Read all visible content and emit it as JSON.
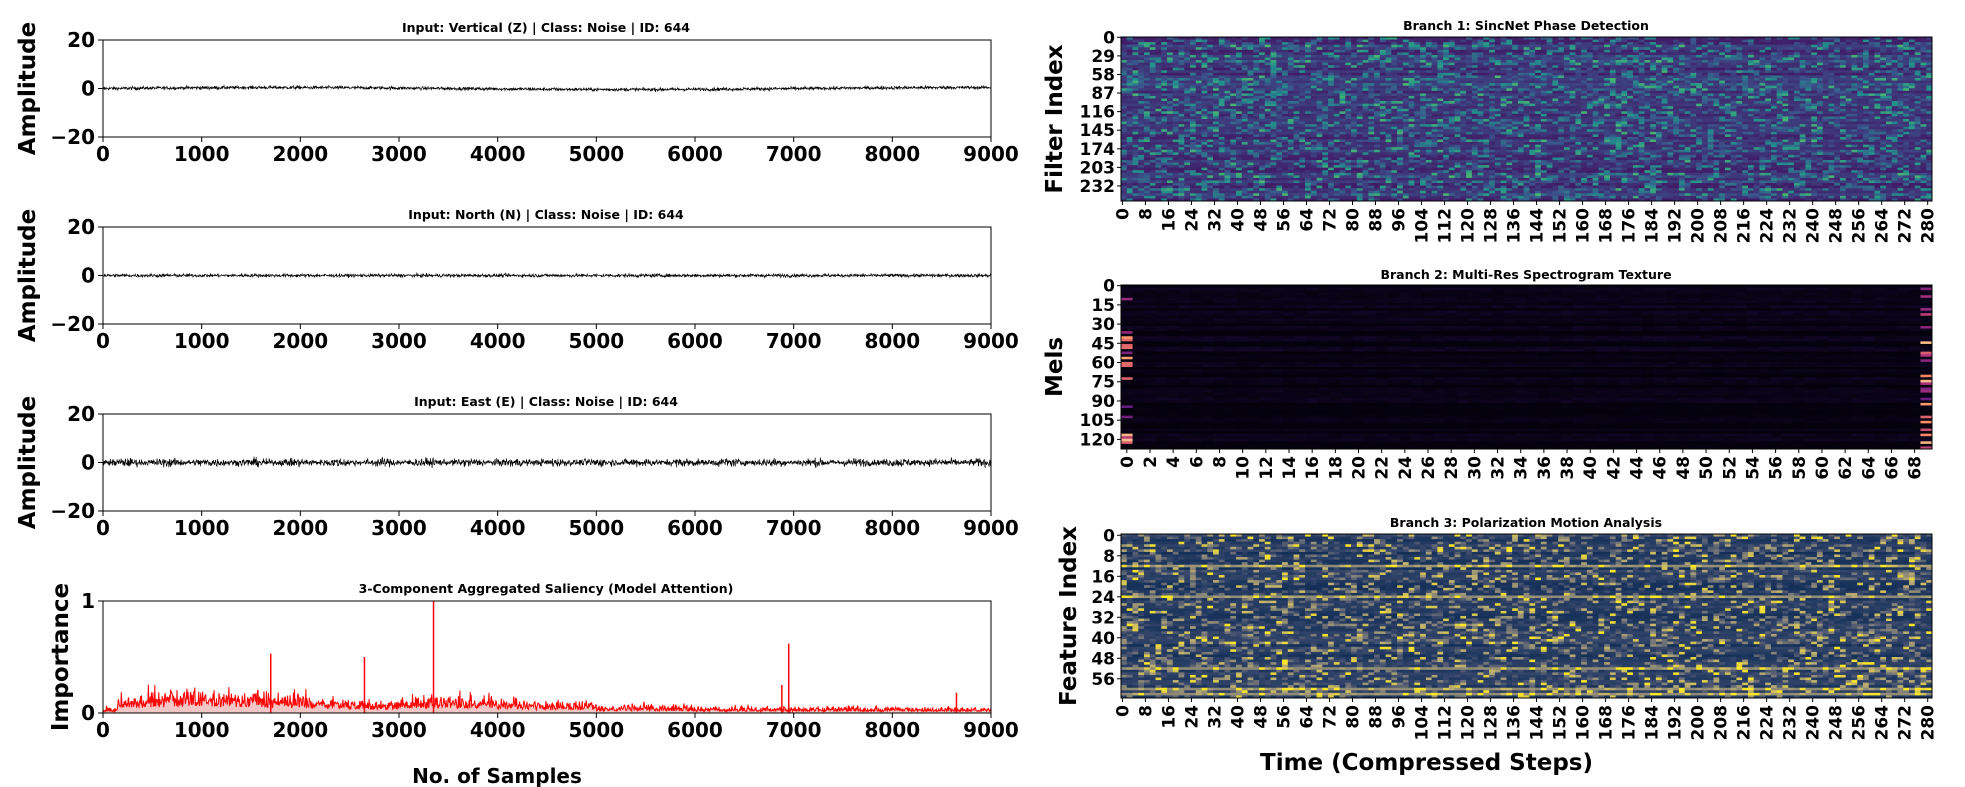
{
  "chart_data": [
    {
      "type": "line",
      "title": "Input: Vertical (Z) | Class: Noise | ID: 644",
      "xlabel": "",
      "ylabel": "Amplitude",
      "xlim": [
        0,
        9000
      ],
      "ylim": [
        -20,
        20
      ],
      "xticks": [
        0,
        1000,
        2000,
        3000,
        4000,
        5000,
        6000,
        7000,
        8000,
        9000
      ],
      "yticks": [
        20,
        0,
        -20
      ],
      "ytick_labels": [
        "20",
        "0",
        "−20"
      ],
      "series": [
        {
          "values_note": "",
          "amplitude_range": [
            -1.5,
            1.5
          ],
          "color": "#000000"
        }
      ]
    },
    {
      "type": "line",
      "title": "Input: North (N) | Class: Noise | ID: 644",
      "xlabel": "",
      "ylabel": "Amplitude",
      "xlim": [
        0,
        9000
      ],
      "ylim": [
        -20,
        20
      ],
      "xticks": [
        0,
        1000,
        2000,
        3000,
        4000,
        5000,
        6000,
        7000,
        8000,
        9000
      ],
      "yticks": [
        20,
        0,
        -20
      ],
      "ytick_labels": [
        "20",
        "0",
        "−20"
      ],
      "series": [
        {
          "values_note": "",
          "amplitude_range": [
            -1.5,
            1.5
          ],
          "color": "#000000"
        }
      ]
    },
    {
      "type": "line",
      "title": "Input: East (E) | Class: Noise | ID: 644",
      "xlabel": "",
      "ylabel": "Amplitude",
      "xlim": [
        0,
        9000
      ],
      "ylim": [
        -20,
        20
      ],
      "xticks": [
        0,
        1000,
        2000,
        3000,
        4000,
        5000,
        6000,
        7000,
        8000,
        9000
      ],
      "yticks": [
        20,
        0,
        -20
      ],
      "ytick_labels": [
        "20",
        "0",
        "−20"
      ],
      "series": [
        {
          "values_note": "",
          "amplitude_range": [
            -4,
            4
          ],
          "color": "#000000"
        }
      ]
    },
    {
      "type": "area",
      "title": "3-Component Aggregated Saliency (Model Attention)",
      "xlabel": "No. of Samples",
      "ylabel": "Importance",
      "xlim": [
        0,
        9000
      ],
      "ylim": [
        0,
        1
      ],
      "xticks": [
        0,
        1000,
        2000,
        3000,
        4000,
        5000,
        6000,
        7000,
        8000,
        9000
      ],
      "yticks": [
        1,
        0
      ],
      "ytick_labels": [
        "1",
        "0"
      ],
      "peaks": [
        {
          "x": 1700,
          "y": 0.53
        },
        {
          "x": 2650,
          "y": 0.5
        },
        {
          "x": 3350,
          "y": 1.0
        },
        {
          "x": 6950,
          "y": 0.62
        },
        {
          "x": 6880,
          "y": 0.25
        },
        {
          "x": 8650,
          "y": 0.18
        }
      ],
      "color": "#ff0000",
      "fill": "#f4c6c6"
    },
    {
      "type": "heatmap",
      "title": "Branch 1: SincNet Phase Detection",
      "xlabel": "",
      "ylabel": "Filter Index",
      "colormap": "viridis",
      "n_cols": 282,
      "n_rows": 256,
      "xticks": [
        0,
        8,
        16,
        24,
        32,
        40,
        48,
        56,
        64,
        72,
        80,
        88,
        96,
        104,
        112,
        120,
        128,
        136,
        144,
        152,
        160,
        168,
        176,
        184,
        192,
        200,
        208,
        216,
        224,
        232,
        240,
        248,
        256,
        264,
        272,
        280
      ],
      "yticks": [
        0,
        29,
        58,
        87,
        116,
        145,
        174,
        203,
        232
      ]
    },
    {
      "type": "heatmap",
      "title": "Branch 2: Multi-Res Spectrogram Texture",
      "xlabel": "",
      "ylabel": "Mels",
      "colormap": "magma",
      "n_cols": 70,
      "n_rows": 128,
      "xticks": [
        0,
        2,
        4,
        6,
        8,
        10,
        12,
        14,
        16,
        18,
        20,
        22,
        24,
        26,
        28,
        30,
        32,
        34,
        36,
        38,
        40,
        42,
        44,
        46,
        48,
        50,
        52,
        54,
        56,
        58,
        60,
        62,
        64,
        66,
        68
      ],
      "yticks": [
        0,
        15,
        30,
        45,
        60,
        75,
        90,
        105,
        120
      ]
    },
    {
      "type": "heatmap",
      "title": "Branch 3: Polarization Motion Analysis",
      "xlabel": "Time (Compressed Steps)",
      "ylabel": "Feature Index",
      "colormap": "cividis",
      "n_cols": 282,
      "n_rows": 64,
      "xticks": [
        0,
        8,
        16,
        24,
        32,
        40,
        48,
        56,
        64,
        72,
        80,
        88,
        96,
        104,
        112,
        120,
        128,
        136,
        144,
        152,
        160,
        168,
        176,
        184,
        192,
        200,
        208,
        216,
        224,
        232,
        240,
        248,
        256,
        264,
        272,
        280
      ],
      "yticks": [
        0,
        8,
        16,
        24,
        32,
        40,
        48,
        56
      ]
    }
  ]
}
